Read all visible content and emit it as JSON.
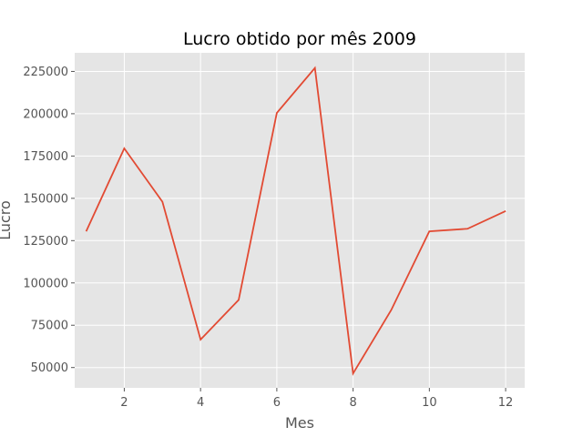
{
  "chart_data": {
    "type": "line",
    "title": "Lucro obtido por mês 2009",
    "xlabel": "Mes",
    "ylabel": "Lucro",
    "xlim": [
      0.7,
      12.5
    ],
    "ylim": [
      38000,
      236000
    ],
    "xticks": [
      2,
      4,
      6,
      8,
      10,
      12
    ],
    "yticks": [
      50000,
      75000,
      100000,
      125000,
      150000,
      175000,
      200000,
      225000
    ],
    "grid": true,
    "series": [
      {
        "x": [
          1,
          2,
          3,
          4,
          5,
          6,
          7,
          8,
          9,
          10,
          11,
          12
        ],
        "y": [
          130500,
          179500,
          148000,
          66500,
          90000,
          200500,
          227000,
          46500,
          84000,
          130500,
          132000,
          142500
        ]
      }
    ],
    "colors": {
      "line": "#e24a33",
      "plot_background": "#e5e5e5",
      "grid": "#ffffff"
    }
  }
}
